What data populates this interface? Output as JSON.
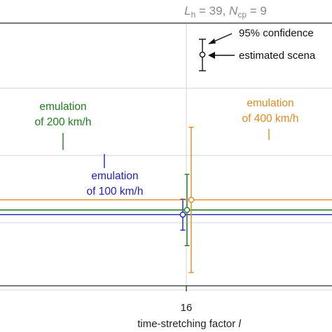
{
  "chart_data": {
    "type": "scatter",
    "title": {
      "l": "L",
      "l_sub": "h",
      "l_rest": " = 39, ",
      "n": "N",
      "n_sub": "cp",
      "n_rest": " = 9"
    },
    "xlabel": {
      "text": "time-stretching factor ",
      "var": "l"
    },
    "ylabel": "",
    "x_ticks": [
      16
    ],
    "grid": true,
    "series": [
      {
        "name": "emulation of 100 km/h",
        "label_lines": [
          "emulation",
          "of 100 km/h"
        ],
        "color": "#1f1fb4",
        "x": 16,
        "ref_level": 0.12,
        "estimate": 0.12,
        "ci": [
          -0.11,
          0.35
        ]
      },
      {
        "name": "emulation of 200 km/h",
        "label_lines": [
          "emulation",
          "of 200 km/h"
        ],
        "color": "#1e7d1e",
        "x": 16,
        "ref_level": 0.19,
        "estimate": 0.19,
        "ci": [
          -0.34,
          0.72
        ]
      },
      {
        "name": "emulation of 400 km/h",
        "label_lines": [
          "emulation",
          "of 400 km/h"
        ],
        "color": "#e08a1e",
        "x": 16,
        "ref_level": 0.34,
        "estimate": 0.34,
        "ci": [
          -0.74,
          1.42
        ]
      }
    ],
    "legend": {
      "ci_label": "95% confidence",
      "estimate_label": "estimated scena",
      "placement": "top-right"
    }
  }
}
